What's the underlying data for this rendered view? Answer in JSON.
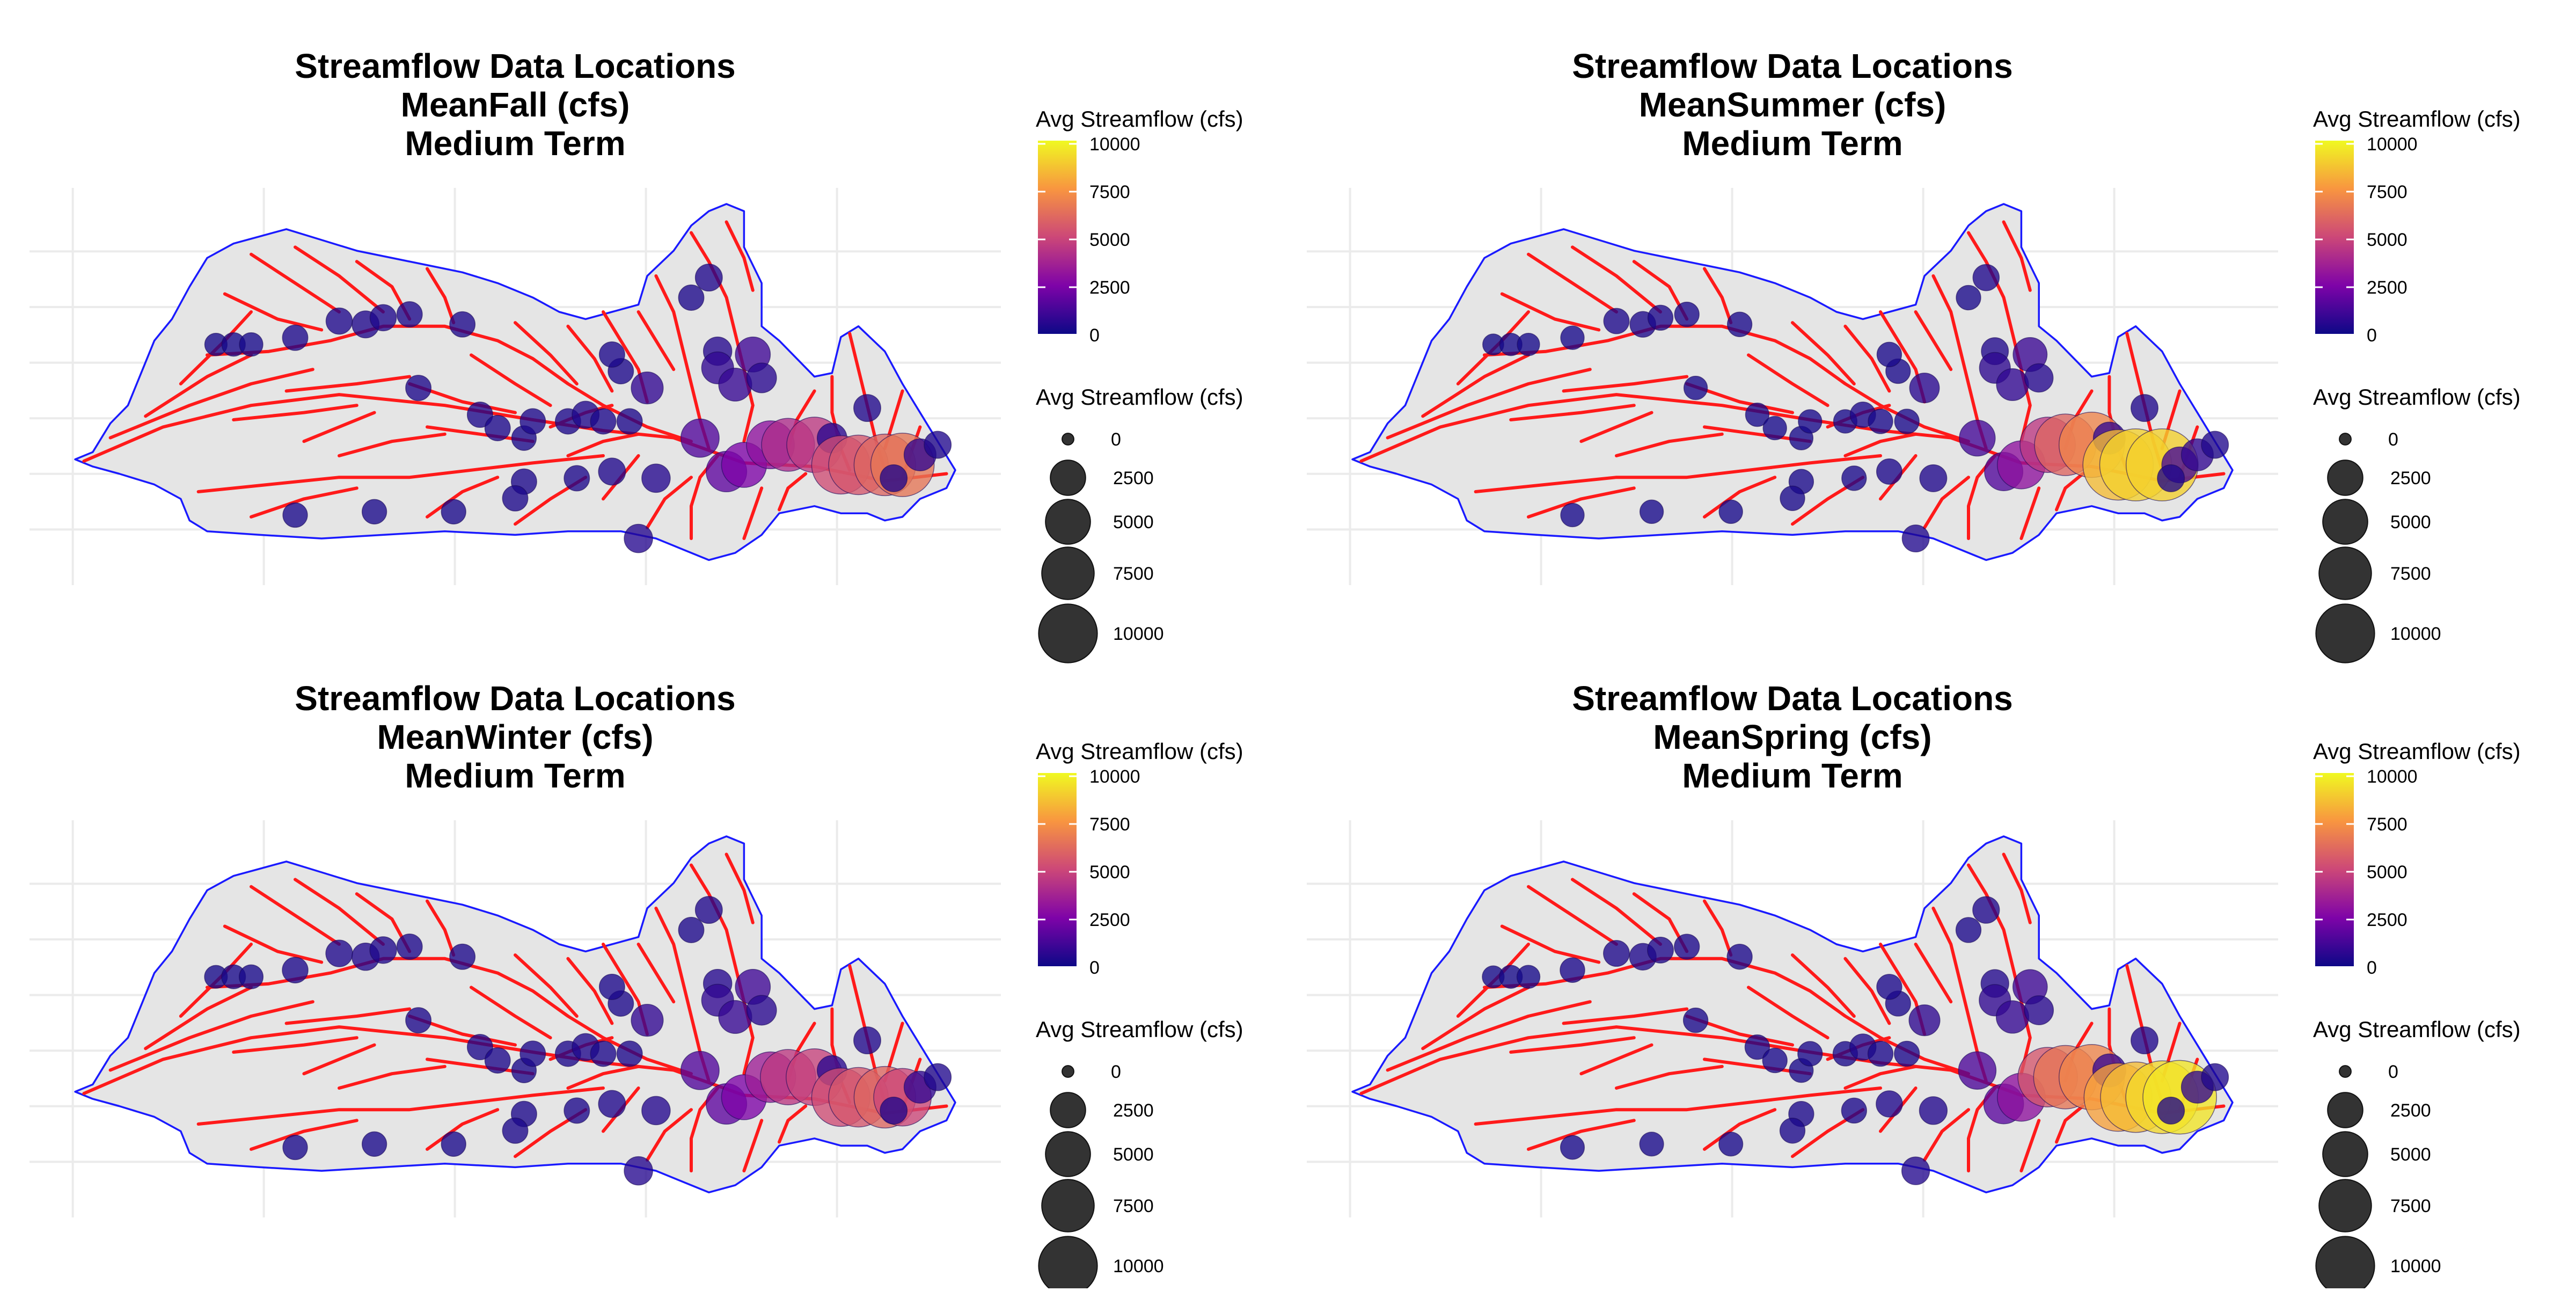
{
  "panels": [
    {
      "id": "fall",
      "title_line1": "Streamflow Data Locations",
      "title_line2": "MeanFall (cfs)",
      "title_line3": "Medium Term"
    },
    {
      "id": "summer",
      "title_line1": "Streamflow Data Locations",
      "title_line2": "MeanSummer (cfs)",
      "title_line3": "Medium Term"
    },
    {
      "id": "winter",
      "title_line1": "Streamflow Data Locations",
      "title_line2": "MeanWinter (cfs)",
      "title_line3": "Medium Term"
    },
    {
      "id": "spring",
      "title_line1": "Streamflow Data Locations",
      "title_line2": "MeanSpring (cfs)",
      "title_line3": "Medium Term"
    }
  ],
  "legend": {
    "color_title": "Avg Streamflow (cfs)",
    "size_title": "Avg Streamflow (cfs)",
    "color_ticks": [
      "10000",
      "7500",
      "5000",
      "2500",
      "0"
    ],
    "size_ticks": [
      "0",
      "2500",
      "5000",
      "7500",
      "10000"
    ]
  },
  "colors": {
    "watershed_fill": "#e5e5e5",
    "watershed_outline": "#1a1aff",
    "streams": "#ff1a1a",
    "grid": "#ebebeb",
    "size_key": "#333333",
    "scale_stops": [
      "#0d0887",
      "#7e03a8",
      "#cc4778",
      "#f89540",
      "#f0f921"
    ]
  },
  "map_data": {
    "type": "bubble-map",
    "scale": "plasma",
    "scale_range": [
      0,
      10000
    ],
    "stations": [
      {
        "lon": 0.16,
        "lat": 0.42,
        "fall": 150,
        "summer": 100,
        "winter": 170,
        "spring": 130
      },
      {
        "lon": 0.18,
        "lat": 0.42,
        "fall": 200,
        "summer": 150,
        "winter": 220,
        "spring": 180
      },
      {
        "lon": 0.2,
        "lat": 0.42,
        "fall": 200,
        "summer": 150,
        "winter": 220,
        "spring": 180
      },
      {
        "lon": 0.25,
        "lat": 0.4,
        "fall": 300,
        "summer": 200,
        "winter": 320,
        "spring": 260
      },
      {
        "lon": 0.3,
        "lat": 0.35,
        "fall": 350,
        "summer": 300,
        "winter": 380,
        "spring": 330
      },
      {
        "lon": 0.33,
        "lat": 0.36,
        "fall": 400,
        "summer": 320,
        "winter": 420,
        "spring": 380
      },
      {
        "lon": 0.35,
        "lat": 0.34,
        "fall": 350,
        "summer": 280,
        "winter": 380,
        "spring": 330
      },
      {
        "lon": 0.38,
        "lat": 0.33,
        "fall": 300,
        "summer": 250,
        "winter": 300,
        "spring": 280
      },
      {
        "lon": 0.44,
        "lat": 0.36,
        "fall": 300,
        "summer": 250,
        "winter": 300,
        "spring": 280
      },
      {
        "lon": 0.39,
        "lat": 0.55,
        "fall": 300,
        "summer": 200,
        "winter": 300,
        "spring": 250
      },
      {
        "lon": 0.46,
        "lat": 0.63,
        "fall": 300,
        "summer": 200,
        "winter": 300,
        "spring": 250
      },
      {
        "lon": 0.48,
        "lat": 0.67,
        "fall": 300,
        "summer": 200,
        "winter": 300,
        "spring": 250
      },
      {
        "lon": 0.51,
        "lat": 0.7,
        "fall": 250,
        "summer": 200,
        "winter": 250,
        "spring": 220
      },
      {
        "lon": 0.52,
        "lat": 0.65,
        "fall": 300,
        "summer": 200,
        "winter": 300,
        "spring": 250
      },
      {
        "lon": 0.56,
        "lat": 0.65,
        "fall": 300,
        "summer": 200,
        "winter": 300,
        "spring": 250
      },
      {
        "lon": 0.58,
        "lat": 0.63,
        "fall": 400,
        "summer": 300,
        "winter": 400,
        "spring": 350
      },
      {
        "lon": 0.6,
        "lat": 0.65,
        "fall": 300,
        "summer": 250,
        "winter": 300,
        "spring": 280
      },
      {
        "lon": 0.63,
        "lat": 0.65,
        "fall": 300,
        "summer": 250,
        "winter": 300,
        "spring": 280
      },
      {
        "lon": 0.62,
        "lat": 0.5,
        "fall": 300,
        "summer": 250,
        "winter": 300,
        "spring": 280
      },
      {
        "lon": 0.61,
        "lat": 0.45,
        "fall": 300,
        "summer": 250,
        "winter": 300,
        "spring": 280
      },
      {
        "lon": 0.65,
        "lat": 0.55,
        "fall": 800,
        "summer": 600,
        "winter": 800,
        "spring": 700
      },
      {
        "lon": 0.7,
        "lat": 0.28,
        "fall": 300,
        "summer": 250,
        "winter": 300,
        "spring": 280
      },
      {
        "lon": 0.72,
        "lat": 0.22,
        "fall": 400,
        "summer": 350,
        "winter": 400,
        "spring": 380
      },
      {
        "lon": 0.73,
        "lat": 0.44,
        "fall": 500,
        "summer": 400,
        "winter": 500,
        "spring": 450
      },
      {
        "lon": 0.73,
        "lat": 0.49,
        "fall": 800,
        "summer": 700,
        "winter": 800,
        "spring": 750
      },
      {
        "lon": 0.75,
        "lat": 0.54,
        "fall": 900,
        "summer": 800,
        "winter": 900,
        "spring": 850
      },
      {
        "lon": 0.77,
        "lat": 0.45,
        "fall": 1100,
        "summer": 1000,
        "winter": 1100,
        "spring": 1050
      },
      {
        "lon": 0.78,
        "lat": 0.52,
        "fall": 600,
        "summer": 500,
        "winter": 600,
        "spring": 550
      },
      {
        "lon": 0.71,
        "lat": 0.7,
        "fall": 1500,
        "summer": 1200,
        "winter": 1500,
        "spring": 1400
      },
      {
        "lon": 0.74,
        "lat": 0.8,
        "fall": 1800,
        "summer": 1500,
        "winter": 1800,
        "spring": 1700
      },
      {
        "lon": 0.76,
        "lat": 0.78,
        "fall": 2500,
        "summer": 3000,
        "winter": 2500,
        "spring": 3000
      },
      {
        "lon": 0.79,
        "lat": 0.72,
        "fall": 3000,
        "summer": 4500,
        "winter": 3500,
        "spring": 5500
      },
      {
        "lon": 0.81,
        "lat": 0.72,
        "fall": 4000,
        "summer": 6000,
        "winter": 4500,
        "spring": 6500
      },
      {
        "lon": 0.84,
        "lat": 0.72,
        "fall": 4500,
        "summer": 7000,
        "winter": 4800,
        "spring": 7000
      },
      {
        "lon": 0.86,
        "lat": 0.7,
        "fall": 600,
        "summer": 800,
        "winter": 600,
        "spring": 900
      },
      {
        "lon": 0.87,
        "lat": 0.78,
        "fall": 5200,
        "summer": 8500,
        "winter": 5200,
        "spring": 7800
      },
      {
        "lon": 0.89,
        "lat": 0.78,
        "fall": 5500,
        "summer": 9000,
        "winter": 5500,
        "spring": 8500
      },
      {
        "lon": 0.92,
        "lat": 0.78,
        "fall": 6000,
        "summer": 9000,
        "winter": 6000,
        "spring": 9200
      },
      {
        "lon": 0.94,
        "lat": 0.78,
        "fall": 6500,
        "summer": 1200,
        "winter": 5000,
        "spring": 9500
      },
      {
        "lon": 0.9,
        "lat": 0.61,
        "fall": 400,
        "summer": 400,
        "winter": 400,
        "spring": 400
      },
      {
        "lon": 0.96,
        "lat": 0.75,
        "fall": 800,
        "summer": 800,
        "winter": 800,
        "spring": 800
      },
      {
        "lon": 0.98,
        "lat": 0.72,
        "fall": 400,
        "summer": 400,
        "winter": 400,
        "spring": 400
      },
      {
        "lon": 0.93,
        "lat": 0.82,
        "fall": 400,
        "summer": 400,
        "winter": 400,
        "spring": 400
      },
      {
        "lon": 0.66,
        "lat": 0.82,
        "fall": 500,
        "summer": 400,
        "winter": 500,
        "spring": 450
      },
      {
        "lon": 0.61,
        "lat": 0.8,
        "fall": 400,
        "summer": 300,
        "winter": 400,
        "spring": 350
      },
      {
        "lon": 0.57,
        "lat": 0.82,
        "fall": 300,
        "summer": 250,
        "winter": 300,
        "spring": 280
      },
      {
        "lon": 0.51,
        "lat": 0.83,
        "fall": 300,
        "summer": 250,
        "winter": 300,
        "spring": 280
      },
      {
        "lon": 0.5,
        "lat": 0.88,
        "fall": 300,
        "summer": 250,
        "winter": 300,
        "spring": 280
      },
      {
        "lon": 0.43,
        "lat": 0.92,
        "fall": 250,
        "summer": 200,
        "winter": 250,
        "spring": 220
      },
      {
        "lon": 0.34,
        "lat": 0.92,
        "fall": 250,
        "summer": 200,
        "winter": 250,
        "spring": 220
      },
      {
        "lon": 0.25,
        "lat": 0.93,
        "fall": 250,
        "summer": 200,
        "winter": 250,
        "spring": 220
      },
      {
        "lon": 0.64,
        "lat": 1.0,
        "fall": 500,
        "summer": 400,
        "winter": 500,
        "spring": 450
      }
    ]
  }
}
